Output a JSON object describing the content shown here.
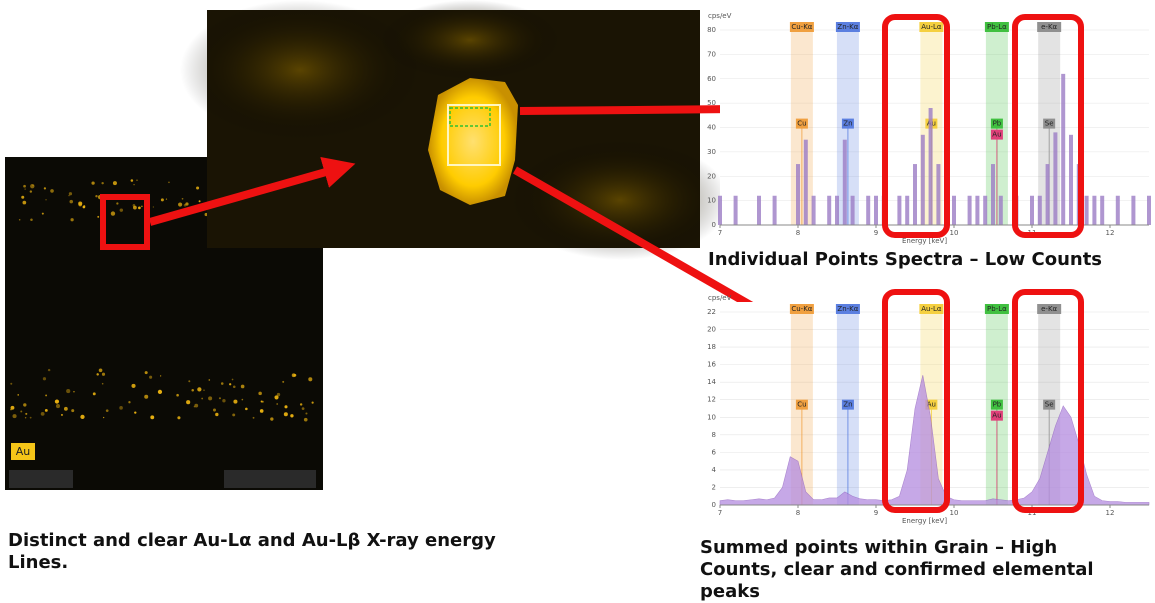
{
  "chart_data": [
    {
      "type": "bar",
      "y_label": "cps/eV",
      "x_label": "Energy [keV]",
      "color": "#9b7cc4",
      "xlim": [
        7,
        12.5
      ],
      "xticks": [
        7,
        8,
        9,
        10,
        11,
        12
      ],
      "ylim": [
        0,
        80
      ],
      "yticks": [
        0,
        10,
        20,
        30,
        40,
        50,
        60,
        70,
        80
      ],
      "x": [
        7.0,
        7.1,
        7.2,
        7.3,
        7.4,
        7.5,
        7.6,
        7.7,
        7.8,
        7.9,
        8.0,
        8.1,
        8.2,
        8.3,
        8.4,
        8.5,
        8.6,
        8.7,
        8.8,
        8.9,
        9.0,
        9.1,
        9.2,
        9.3,
        9.4,
        9.5,
        9.6,
        9.7,
        9.8,
        9.9,
        10.0,
        10.1,
        10.2,
        10.3,
        10.4,
        10.5,
        10.6,
        10.7,
        10.8,
        10.9,
        11.0,
        11.1,
        11.2,
        11.3,
        11.4,
        11.5,
        11.6,
        11.7,
        11.8,
        11.9,
        12.0,
        12.1,
        12.2,
        12.3,
        12.4,
        12.5
      ],
      "values": [
        12,
        0,
        12,
        0,
        0,
        12,
        0,
        12,
        0,
        0,
        25,
        35,
        12,
        0,
        12,
        12,
        35,
        12,
        0,
        12,
        12,
        12,
        0,
        12,
        12,
        25,
        37,
        48,
        25,
        12,
        12,
        0,
        12,
        12,
        12,
        25,
        12,
        0,
        12,
        0,
        12,
        12,
        25,
        38,
        62,
        37,
        25,
        12,
        12,
        12,
        0,
        12,
        0,
        12,
        0,
        12
      ],
      "lines": [
        {
          "label": "Cu-Kα",
          "energy": 8.05,
          "color": "#f0a040"
        },
        {
          "label": "Zn-Kα",
          "energy": 8.64,
          "color": "#5b7fe0"
        },
        {
          "label": "Au-Lα",
          "energy": 9.71,
          "color": "#f5d040"
        },
        {
          "label": "Pb-Lα",
          "energy": 10.55,
          "color": "#40c040"
        },
        {
          "label": "e-Kα",
          "energy": 11.22,
          "color": "#909090"
        }
      ],
      "markers": [
        {
          "label": "Cu",
          "energy": 8.05,
          "color": "#f0a040"
        },
        {
          "label": "Zn",
          "energy": 8.64,
          "color": "#5b7fe0"
        },
        {
          "label": "Au",
          "energy": 9.71,
          "color": "#f5d040"
        },
        {
          "label": "Pb",
          "energy": 10.55,
          "color": "#40c040"
        },
        {
          "label": "Au",
          "energy": 10.55,
          "color": "#e0407a"
        },
        {
          "label": "Se",
          "energy": 11.22,
          "color": "#909090"
        }
      ]
    },
    {
      "type": "area",
      "y_label": "cps/eV",
      "x_label": "Energy [keV]",
      "color": "#b48be0",
      "xlim": [
        7,
        12.5
      ],
      "xticks": [
        7,
        8,
        9,
        10,
        11,
        12
      ],
      "ylim": [
        0,
        22
      ],
      "yticks": [
        0,
        2,
        4,
        6,
        8,
        10,
        12,
        14,
        16,
        18,
        20,
        22
      ],
      "x": [
        7.0,
        7.1,
        7.2,
        7.3,
        7.4,
        7.5,
        7.6,
        7.7,
        7.8,
        7.9,
        8.0,
        8.1,
        8.2,
        8.3,
        8.4,
        8.5,
        8.6,
        8.7,
        8.8,
        8.9,
        9.0,
        9.1,
        9.2,
        9.3,
        9.4,
        9.5,
        9.6,
        9.7,
        9.8,
        9.9,
        10.0,
        10.1,
        10.2,
        10.3,
        10.4,
        10.5,
        10.6,
        10.7,
        10.8,
        10.9,
        11.0,
        11.1,
        11.2,
        11.3,
        11.4,
        11.5,
        11.6,
        11.7,
        11.8,
        11.9,
        12.0,
        12.1,
        12.2,
        12.3,
        12.4,
        12.5
      ],
      "values": [
        0.5,
        0.6,
        0.5,
        0.5,
        0.6,
        0.7,
        0.6,
        0.8,
        2,
        5.5,
        5,
        1.5,
        0.6,
        0.6,
        0.8,
        0.8,
        1.5,
        1,
        0.7,
        0.6,
        0.6,
        0.5,
        0.6,
        1,
        4,
        11,
        14.8,
        10,
        3,
        1,
        0.6,
        0.5,
        0.5,
        0.5,
        0.5,
        0.7,
        0.6,
        0.5,
        0.6,
        0.8,
        1.5,
        3,
        6,
        9,
        11.3,
        10,
        7,
        3.5,
        1,
        0.5,
        0.4,
        0.4,
        0.3,
        0.3,
        0.3,
        0.3
      ],
      "lines": [
        {
          "label": "Cu-Kα",
          "energy": 8.05,
          "color": "#f0a040"
        },
        {
          "label": "Zn-Kα",
          "energy": 8.64,
          "color": "#5b7fe0"
        },
        {
          "label": "Au-Lα",
          "energy": 9.71,
          "color": "#f5d040"
        },
        {
          "label": "Pb-Lα",
          "energy": 10.55,
          "color": "#40c040"
        },
        {
          "label": "e-Kα",
          "energy": 11.22,
          "color": "#909090"
        }
      ],
      "markers": [
        {
          "label": "Cu",
          "energy": 8.05,
          "color": "#f0a040"
        },
        {
          "label": "Zn",
          "energy": 8.64,
          "color": "#5b7fe0"
        },
        {
          "label": "Au",
          "energy": 9.71,
          "color": "#f5d040"
        },
        {
          "label": "Pb",
          "energy": 10.55,
          "color": "#40c040"
        },
        {
          "label": "Au",
          "energy": 10.55,
          "color": "#e0407a"
        },
        {
          "label": "Se",
          "energy": 11.22,
          "color": "#909090"
        }
      ]
    }
  ],
  "image_label": "Au",
  "caption_top_right": "Individual Points Spectra – Low Counts",
  "caption_bottom_right": "Summed points within Grain – High Counts, clear and confirmed elemental peaks",
  "caption_left": "Distinct and clear Au-Lα and Au-Lβ X-ray energy Lines."
}
